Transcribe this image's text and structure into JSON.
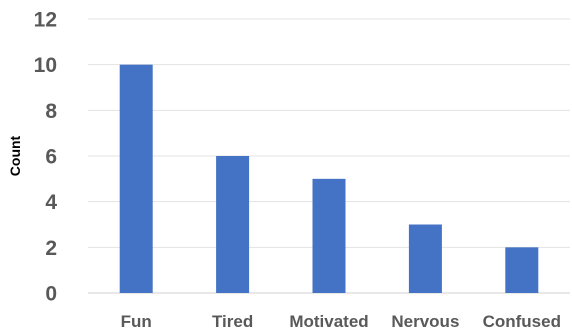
{
  "chart_data": {
    "type": "bar",
    "title": "",
    "xlabel": "",
    "ylabel": "Count",
    "categories": [
      "Fun",
      "Tired",
      "Motivated",
      "Nervous",
      "Confused"
    ],
    "values": [
      10,
      6,
      5,
      3,
      2
    ],
    "ylim": [
      0,
      12
    ],
    "yticks": [
      0,
      2,
      4,
      6,
      8,
      10,
      12
    ],
    "grid": true,
    "legend": "none",
    "colors": {
      "bar": "#4472c4",
      "grid": "#e3e3e3",
      "tick_text": "#595959",
      "axis_title": "#000000"
    }
  }
}
